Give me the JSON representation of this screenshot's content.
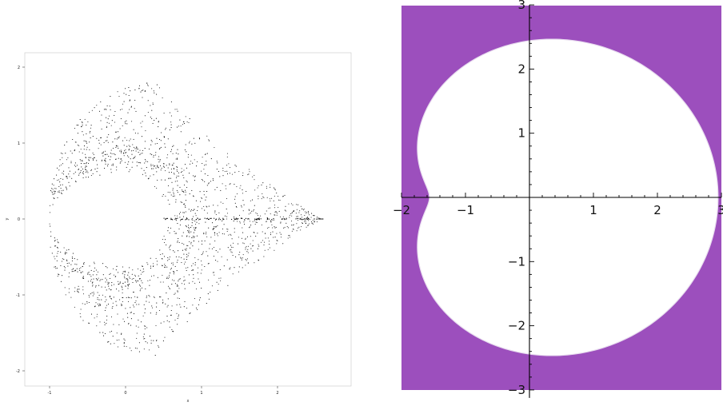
{
  "chart_data": [
    {
      "type": "scatter",
      "title": "",
      "xlabel": "x",
      "ylabel": "y",
      "xlim": [
        -1.3,
        3.0
      ],
      "ylim": [
        -2.2,
        2.2
      ],
      "xticks": [
        -1,
        0,
        1,
        2
      ],
      "yticks": [
        -2,
        -1,
        0,
        1,
        2
      ],
      "xtick_labels": [
        "-1",
        "0",
        "1",
        "2"
      ],
      "ytick_labels": [
        "-2",
        "-1",
        "0",
        "1",
        "2"
      ],
      "grid": false,
      "point_color": "#000000",
      "description_values": {
        "outer_cusp_top": [
          0.4,
          1.8
        ],
        "outer_cusp_bottom": [
          0.4,
          -1.8
        ],
        "right_cusp": [
          2.6,
          0.0
        ],
        "left_cusps": [
          [
            -1.0,
            0.17
          ],
          [
            -1.0,
            -0.17
          ]
        ],
        "white_arc_radius": 1.0
      }
    },
    {
      "type": "area",
      "title": "",
      "xlabel": "",
      "ylabel": "",
      "xlim": [
        -2,
        3
      ],
      "ylim": [
        -3,
        3
      ],
      "xticks": [
        -2,
        -1,
        1,
        2,
        3
      ],
      "yticks": [
        -3,
        -2,
        -1,
        1,
        2,
        3
      ],
      "xtick_labels": [
        "−2",
        "−1",
        "1",
        "2",
        "3"
      ],
      "ytick_labels": [
        "−3",
        "−2",
        "−1",
        "1",
        "2",
        "3"
      ],
      "grid": false,
      "fill_color": "#9c4fbd",
      "region_color": "#ffffff",
      "curve": "limacon",
      "curve_params": {
        "a": 1.4,
        "b": 1.0,
        "center": [
          -1.0,
          0.0
        ]
      }
    }
  ]
}
